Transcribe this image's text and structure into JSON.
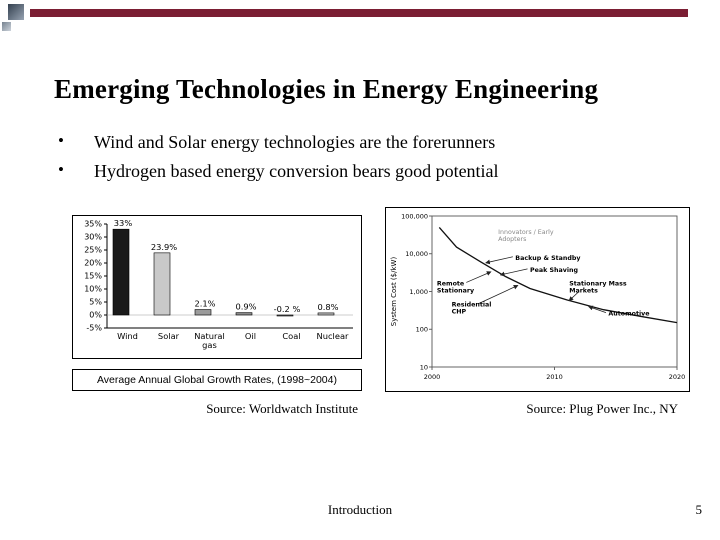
{
  "slide": {
    "title": "Emerging Technologies in Energy Engineering",
    "bullet_glyph": "•",
    "bullets": [
      "Wind and Solar energy technologies are the forerunners",
      "Hydrogen based energy conversion bears good potential"
    ],
    "left_source": "Source: Worldwatch Institute",
    "right_source": "Source: Plug Power Inc., NY",
    "footer": "Introduction",
    "page_number": "5",
    "accent_color": "#7b1e33"
  },
  "chart_data": [
    {
      "type": "bar",
      "title": "Average Annual Global Growth Rates, (1998~2004)",
      "categories": [
        "Wind",
        "Solar",
        "Natural gas",
        "Oil",
        "Coal",
        "Nuclear"
      ],
      "values": [
        33,
        23.9,
        2.1,
        0.9,
        -0.2,
        0.8
      ],
      "value_labels": [
        "33%",
        "23.9%",
        "2.1%",
        "0.9%",
        "-0.2 %",
        "0.8%"
      ],
      "ylim": [
        -5,
        35
      ],
      "yticks": [
        35,
        30,
        25,
        20,
        15,
        10,
        5,
        0,
        -5
      ],
      "ytick_labels": [
        "35%",
        "30%",
        "25%",
        "20%",
        "15%",
        "10%",
        "5%",
        "0%",
        "-5%"
      ],
      "bar_colors": [
        "#1a1a1a",
        "#c9c9c9",
        "#9b9b9b",
        "#8a8a8a",
        "#707070",
        "#bdbdbd"
      ],
      "grid": false,
      "legend": "none"
    },
    {
      "type": "line",
      "ylabel": "System Cost ($/kW)",
      "yscale": "log",
      "ylim": [
        10,
        100000
      ],
      "ytick_labels": [
        "100,000",
        "10,000",
        "1,000",
        "100",
        "10"
      ],
      "xlim": [
        2000,
        2020
      ],
      "xtick_labels": [
        "2000",
        "2010",
        "2020"
      ],
      "series": [
        {
          "name": "fuel cell system cost curve",
          "x": [
            2000.6,
            2002,
            2004,
            2006,
            2008,
            2011,
            2014,
            2017,
            2020
          ],
          "y": [
            50000,
            15000,
            6000,
            2500,
            1200,
            600,
            330,
            220,
            150
          ]
        }
      ],
      "annotations": [
        {
          "lines": [
            "Innovators / Early",
            "Adopters"
          ],
          "x": 27,
          "y": 8,
          "bold": false,
          "color": "#8a8a8a"
        },
        {
          "lines": [
            "Backup & Standby"
          ],
          "x": 34,
          "y": 25,
          "bold": true,
          "color": "#000000",
          "arrow": {
            "from": [
              33,
              27
            ],
            "to": [
              22,
              31
            ]
          }
        },
        {
          "lines": [
            "Peak Shaving"
          ],
          "x": 40,
          "y": 33,
          "bold": true,
          "color": "#000000",
          "arrow": {
            "from": [
              39,
              35
            ],
            "to": [
              28,
              39
            ]
          }
        },
        {
          "lines": [
            "Remote",
            "Stationary"
          ],
          "x": 2,
          "y": 42,
          "bold": true,
          "color": "#000000",
          "arrow": {
            "from": [
              14,
              44
            ],
            "to": [
              24,
              37
            ]
          }
        },
        {
          "lines": [
            "Stationary Mass",
            "Markets"
          ],
          "x": 56,
          "y": 42,
          "bold": true,
          "color": "#000000",
          "arrow": {
            "from": [
              60,
              50
            ],
            "to": [
              56,
              56
            ]
          }
        },
        {
          "lines": [
            "Residential",
            "CHP"
          ],
          "x": 8,
          "y": 56,
          "bold": true,
          "color": "#000000",
          "arrow": {
            "from": [
              19,
              58
            ],
            "to": [
              35,
              46
            ]
          }
        },
        {
          "lines": [
            "Automotive"
          ],
          "x": 72,
          "y": 62,
          "bold": true,
          "color": "#000000",
          "arrow": {
            "from": [
              71,
              64
            ],
            "to": [
              64,
              60
            ]
          }
        }
      ],
      "grid": false,
      "legend": "none"
    }
  ]
}
